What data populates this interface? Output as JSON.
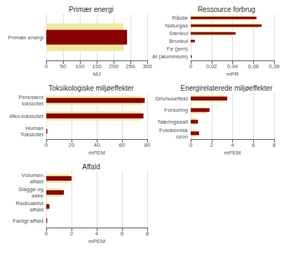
{
  "chart_data": [
    {
      "type": "bar",
      "orientation": "horizontal",
      "title": "Primær energi",
      "categories": [
        "Primær energi"
      ],
      "series": [
        {
          "color": "#F0EAA0",
          "values": [
            230
          ]
        },
        {
          "color": "#8B0000",
          "values": [
            240
          ]
        }
      ],
      "xlabel": "MJ",
      "xlim": [
        0,
        300
      ],
      "xticks": [
        0,
        50,
        100,
        150,
        200,
        250,
        300
      ],
      "grid": true
    },
    {
      "type": "bar",
      "orientation": "horizontal",
      "title": "Ressource forbrug",
      "categories": [
        "Råolie",
        "Naturgas",
        "Stenkul",
        "Brunkul",
        "Fe (jern)",
        "Al (aluminium)"
      ],
      "series": [
        {
          "color": "#F0EAA0",
          "values": [
            0.06,
            0.065,
            0.04,
            0.002,
            0.0,
            0.0
          ]
        },
        {
          "color": "#8B0000",
          "values": [
            0.063,
            0.068,
            0.043,
            0.004,
            0.0,
            0.001
          ]
        }
      ],
      "xlabel": "mPR",
      "xlim": [
        0,
        0.08
      ],
      "xticks": [
        0,
        {
          "value": 0.02,
          "label": "0,02"
        },
        {
          "value": 0.04,
          "label": "0,04"
        },
        {
          "value": 0.06,
          "label": "0,06"
        },
        {
          "value": 0.08,
          "label": "0,08"
        }
      ],
      "grid": true
    },
    {
      "type": "bar",
      "orientation": "horizontal",
      "title": "Toksikologiske miljøeffekter",
      "categories": [
        "Persistent\ntoksicitet",
        "Øko-toksicitet",
        "Human\nToksicitet"
      ],
      "series": [
        {
          "color": "#F0EAA0",
          "values": [
            76,
            75,
            0.3
          ]
        },
        {
          "color": "#8B0000",
          "values": [
            78,
            77,
            0.8
          ]
        }
      ],
      "xlabel": "mPEM",
      "xlim": [
        0,
        80
      ],
      "xticks": [
        0,
        20,
        40,
        60,
        80
      ],
      "grid": true
    },
    {
      "type": "bar",
      "orientation": "horizontal",
      "title": "Energirelaterede miljøeffekter",
      "categories": [
        "Drivhuseffekt",
        "Forsuring",
        "Næringssalt",
        "Fotokemisk\nozon"
      ],
      "series": [
        {
          "color": "#F0EAA0",
          "values": [
            3.2,
            1.5,
            0.55,
            0.45
          ]
        },
        {
          "color": "#8B0000",
          "values": [
            3.5,
            1.8,
            0.7,
            0.8
          ]
        }
      ],
      "xlabel": "mPEM",
      "xlim": [
        0,
        8
      ],
      "xticks": [
        0,
        2,
        4,
        6,
        8
      ],
      "grid": true
    },
    {
      "type": "bar",
      "orientation": "horizontal",
      "title": "Affald",
      "categories": [
        "Volumen\naffald",
        "Slagge og\naske",
        "Radioaktivt\naffald",
        "Farligt affald"
      ],
      "series": [
        {
          "color": "#F0EAA0",
          "values": [
            1.8,
            1.2,
            0.15,
            0.0
          ]
        },
        {
          "color": "#8B0000",
          "values": [
            2.0,
            1.4,
            0.25,
            0.07
          ]
        }
      ],
      "xlabel": "mPEM",
      "xlim": [
        0,
        8
      ],
      "xticks": [
        0,
        2,
        4,
        6,
        8
      ],
      "grid": true
    }
  ]
}
